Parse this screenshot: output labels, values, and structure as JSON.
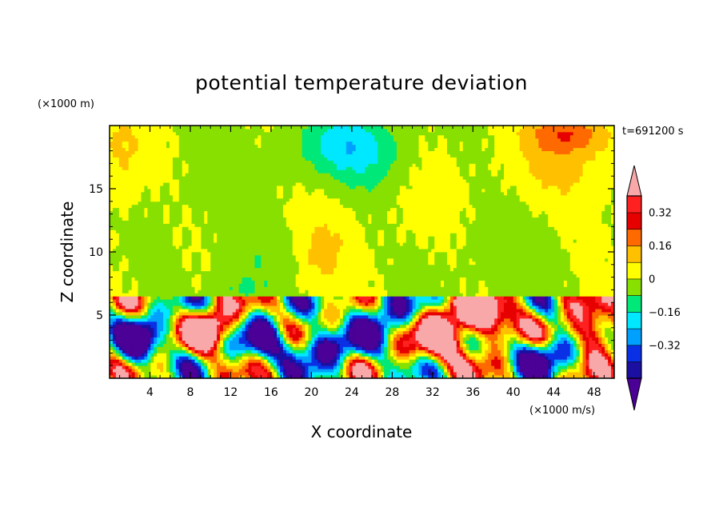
{
  "chart_data": {
    "type": "heatmap",
    "title": "potential temperature deviation",
    "xlabel": "X coordinate",
    "ylabel": "Z coordinate",
    "x_unit_label": "(×1000 m/s)",
    "y_unit_label": "(×1000 m)",
    "time_label": "t=691200 s",
    "xlim": [
      0,
      50
    ],
    "ylim": [
      0,
      20
    ],
    "x_ticks": [
      4,
      8,
      12,
      16,
      20,
      24,
      28,
      32,
      36,
      40,
      44,
      48
    ],
    "y_ticks": [
      5,
      10,
      15
    ],
    "x_tick_labels": [
      "4",
      "8",
      "12",
      "16",
      "20",
      "24",
      "28",
      "32",
      "36",
      "40",
      "44",
      "48"
    ],
    "y_tick_labels": [
      "5",
      "10",
      "15"
    ],
    "colorbar": {
      "levels": [
        -0.48,
        -0.4,
        -0.32,
        -0.24,
        -0.16,
        -0.08,
        0,
        0.08,
        0.16,
        0.24,
        0.32,
        0.4
      ],
      "colors": [
        "#4b0096",
        "#1a0fa0",
        "#0a30e6",
        "#00a0ff",
        "#00e8ff",
        "#00e878",
        "#88e000",
        "#ffff00",
        "#ffc000",
        "#ff6a00",
        "#e60000",
        "#ff2020",
        "#f8a8a8"
      ],
      "tick_values": [
        -0.32,
        -0.16,
        0,
        0.16,
        0.32
      ],
      "tick_labels": [
        "−0.32",
        "−0.16",
        "0",
        "0.16",
        "0.32"
      ],
      "extend": "both"
    }
  }
}
